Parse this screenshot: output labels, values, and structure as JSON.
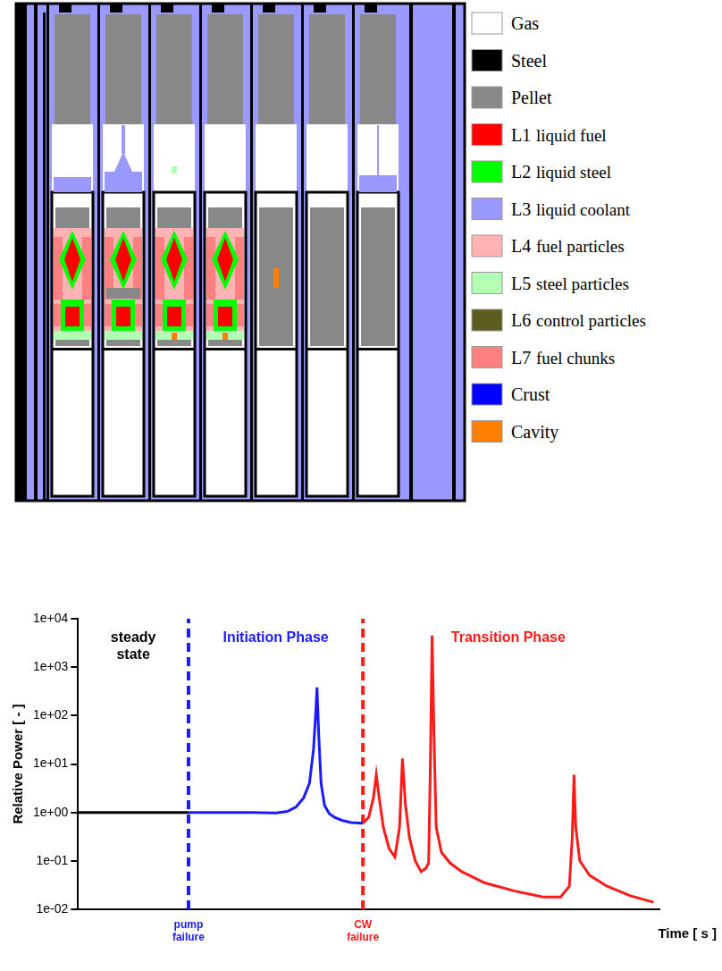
{
  "diagram": {
    "legend": [
      {
        "label": "Gas",
        "color": "#ffffff"
      },
      {
        "label": "Steel",
        "color": "#000000"
      },
      {
        "label": "Pellet",
        "color": "#888888"
      },
      {
        "code": "L1",
        "label": "liquid fuel",
        "color": "#ff0000"
      },
      {
        "code": "L2",
        "label": "liquid steel",
        "color": "#00ff00"
      },
      {
        "code": "L3",
        "label": "liquid coolant",
        "color": "#9999ff"
      },
      {
        "code": "L4",
        "label": "fuel particles",
        "color": "#ffb3b3"
      },
      {
        "code": "L5",
        "label": "steel particles",
        "color": "#b3ffb3"
      },
      {
        "code": "L6",
        "label": "control particles",
        "color": "#5c5c1f"
      },
      {
        "code": "L7",
        "label": "fuel chunks",
        "color": "#ff8080"
      },
      {
        "label": "Crust",
        "color": "#0000ff"
      },
      {
        "label": "Cavity",
        "color": "#ff8000"
      }
    ]
  },
  "chart_data": {
    "type": "line",
    "x_label": "Time [ s ]",
    "y_label": "Relative Power [ - ]",
    "log": "y",
    "grid": false,
    "tick_labels": "y",
    "xlim": [
      0,
      100
    ],
    "ylim": [
      0.01,
      10000
    ],
    "yticks": [
      {
        "value": 0.01,
        "label": "1e-02"
      },
      {
        "value": 0.1,
        "label": "1e-01"
      },
      {
        "value": 1,
        "label": "1e+00"
      },
      {
        "value": 10,
        "label": "1e+01"
      },
      {
        "value": 100,
        "label": "1e+02"
      },
      {
        "value": 1000,
        "label": "1e+03"
      },
      {
        "value": 10000,
        "label": "1e+04"
      }
    ],
    "series": [
      {
        "name": "steady state",
        "color": "#000000",
        "x": [
          0,
          19
        ],
        "values": [
          1,
          1
        ]
      },
      {
        "name": "Initiation Phase",
        "color": "#1a1aff",
        "x": [
          19,
          25,
          30,
          34,
          36,
          37.5,
          38.8,
          39.8,
          40.5,
          40.9,
          41.1,
          41.4,
          41.8,
          42.4,
          43.2,
          44.2,
          45.5,
          47,
          49
        ],
        "values": [
          1,
          1,
          1,
          0.98,
          1.05,
          1.3,
          2,
          4,
          20,
          120,
          380,
          40,
          4,
          1.4,
          0.95,
          0.78,
          0.68,
          0.62,
          0.6
        ]
      },
      {
        "name": "Transition Phase",
        "color": "#ff1a1a",
        "x": [
          49,
          50,
          50.8,
          51.3,
          51.8,
          52.5,
          53.5,
          54.5,
          55.3,
          55.8,
          56.3,
          57,
          58,
          59,
          59.8,
          60.3,
          60.6,
          60.9,
          61.2,
          61.6,
          62.5,
          64,
          66,
          70,
          75,
          80,
          83,
          84.5,
          85,
          85.3,
          85.6,
          86.3,
          88,
          91,
          95,
          99
        ],
        "values": [
          0.6,
          0.8,
          2,
          6,
          2,
          0.5,
          0.18,
          0.12,
          0.5,
          13,
          1.5,
          0.3,
          0.1,
          0.06,
          0.07,
          0.09,
          10,
          4500,
          50,
          0.5,
          0.15,
          0.09,
          0.06,
          0.035,
          0.024,
          0.018,
          0.018,
          0.03,
          0.3,
          6,
          0.5,
          0.1,
          0.05,
          0.03,
          0.019,
          0.014
        ]
      }
    ],
    "annotations": [
      {
        "x": 19,
        "label": "pump failure",
        "color": "#1a1aff",
        "line_style": "dashed"
      },
      {
        "x": 49,
        "label": "CW failure",
        "color": "#ff1a1a",
        "line_style": "dashed"
      }
    ]
  }
}
